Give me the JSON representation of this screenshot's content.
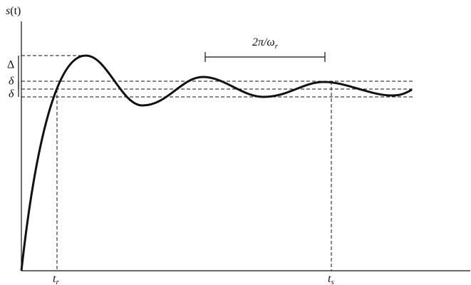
{
  "axis_label": {
    "base": "s",
    "arg": "(t)"
  },
  "labels": {
    "overshoot": "Δ",
    "band_upper": "δ",
    "band_lower": "δ",
    "period": {
      "base": "2π/ω",
      "sub": "r"
    },
    "rise_time": {
      "base": "t",
      "sub": "r"
    },
    "settling_time": {
      "base": "t",
      "sub": "s"
    }
  }
}
